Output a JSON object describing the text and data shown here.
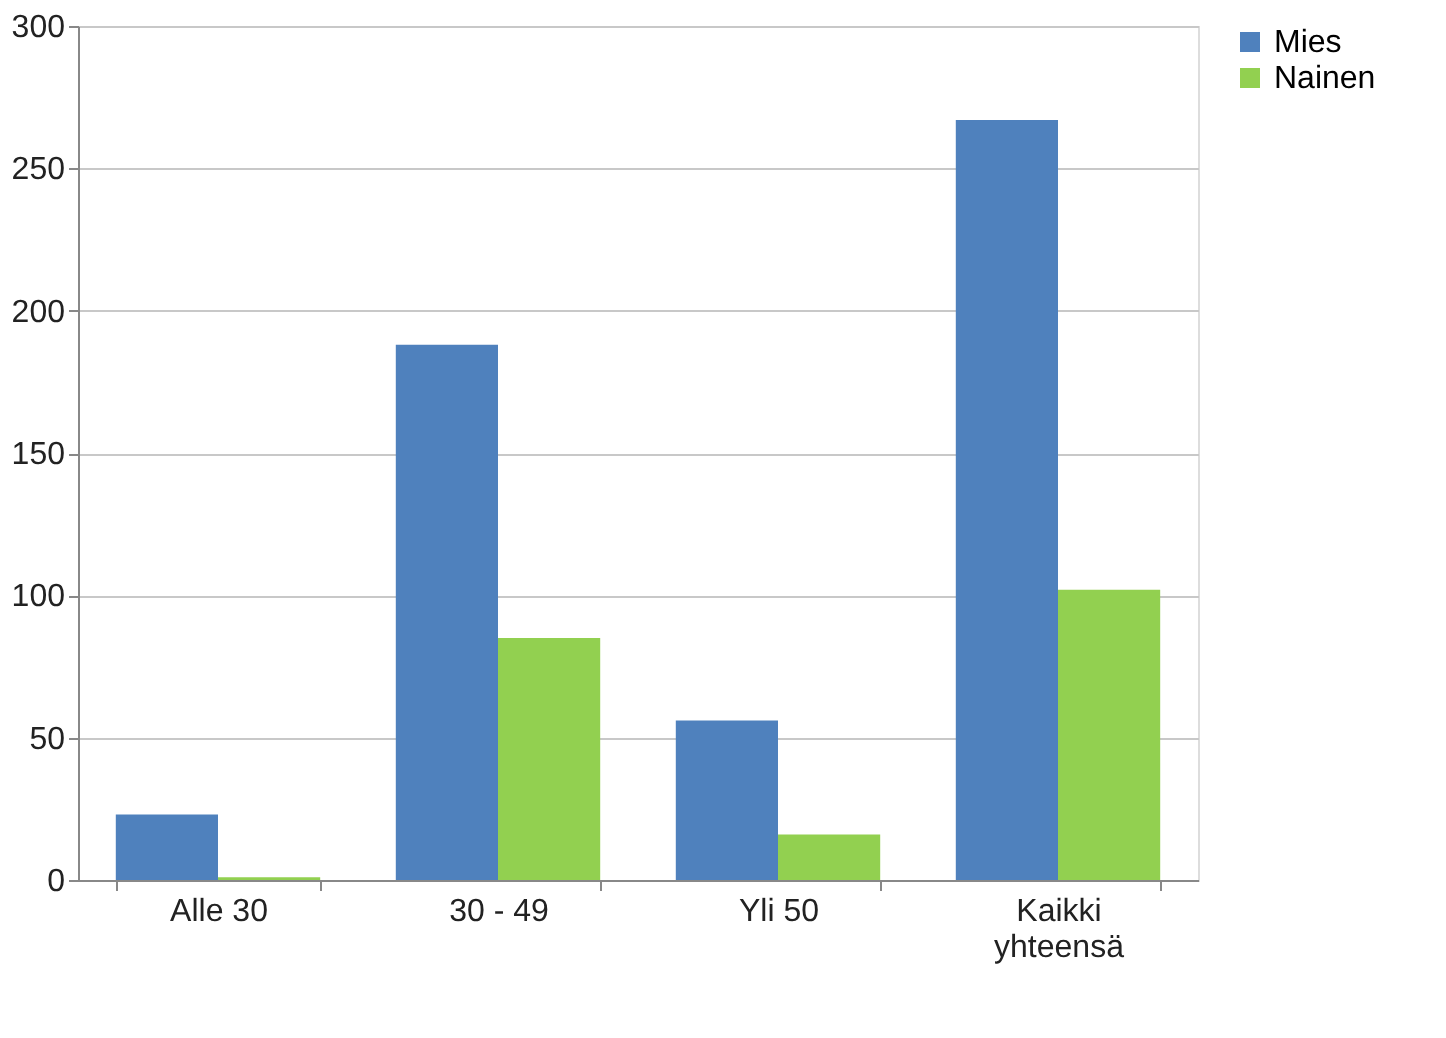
{
  "chart_data": {
    "type": "bar",
    "categories": [
      "Alle 30",
      "30 - 49",
      "Yli 50",
      "Kaikki yhteensä"
    ],
    "series": [
      {
        "name": "Mies",
        "color": "#4f81bd",
        "values": [
          23,
          188,
          56,
          267
        ]
      },
      {
        "name": "Nainen",
        "color": "#92d050",
        "values": [
          1,
          85,
          16,
          102
        ]
      }
    ],
    "ylim": [
      0,
      300
    ],
    "yticks": [
      0,
      50,
      100,
      150,
      200,
      250,
      300
    ],
    "grid": "y",
    "legend": "right"
  }
}
